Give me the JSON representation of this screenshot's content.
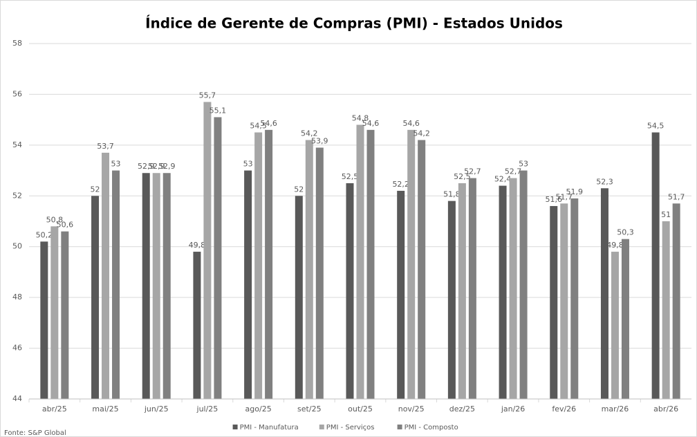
{
  "chart_data": {
    "type": "bar",
    "title": "Índice de Gerente de Compras (PMI) - Estados Unidos",
    "categories": [
      "abr/25",
      "mai/25",
      "jun/25",
      "jul/25",
      "ago/25",
      "set/25",
      "out/25",
      "nov/25",
      "dez/25",
      "jan/26",
      "fev/26",
      "mar/26",
      "abr/26"
    ],
    "series": [
      {
        "name": "PMI - Manufatura",
        "color": "#595959",
        "values": [
          50.2,
          52,
          52.9,
          49.8,
          53,
          52,
          52.5,
          52.2,
          51.8,
          52.4,
          51.6,
          52.3,
          54.5
        ],
        "value_labels": [
          "50,2",
          "52",
          "52,9",
          "49,8",
          "53",
          "52",
          "52,5",
          "52,2",
          "51,8",
          "52,4",
          "51,6",
          "52,3",
          "54,5"
        ]
      },
      {
        "name": "PMI - Serviços",
        "color": "#a6a6a6",
        "values": [
          50.8,
          53.7,
          52.9,
          55.7,
          54.5,
          54.2,
          54.8,
          54.6,
          52.5,
          52.7,
          51.7,
          49.8,
          51
        ],
        "value_labels": [
          "50,8",
          "53,7",
          "52,9",
          "55,7",
          "54,5",
          "54,2",
          "54,8",
          "54,6",
          "52,5",
          "52,7",
          "51,7",
          "49,8",
          "51"
        ]
      },
      {
        "name": "PMI - Composto",
        "color": "#808080",
        "values": [
          50.6,
          53,
          52.9,
          55.1,
          54.6,
          53.9,
          54.6,
          54.2,
          52.7,
          53,
          51.9,
          50.3,
          51.7
        ],
        "value_labels": [
          "50,6",
          "53",
          "52,9",
          "55,1",
          "54,6",
          "53,9",
          "54,6",
          "54,2",
          "52,7",
          "53",
          "51,9",
          "50,3",
          "51,7"
        ]
      }
    ],
    "ylim": [
      44,
      58
    ],
    "yticks": [
      44,
      46,
      48,
      50,
      52,
      54,
      56,
      58
    ],
    "grid": true,
    "legend": "bottom",
    "source": "Fonte: S&P Global"
  }
}
